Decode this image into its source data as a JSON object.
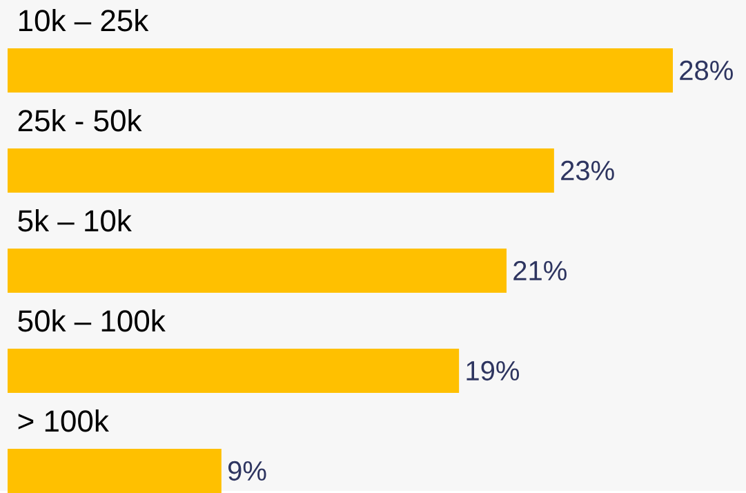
{
  "chart_data": {
    "type": "bar",
    "orientation": "horizontal",
    "categories": [
      "10k – 25k",
      "25k - 50k",
      "5k – 10k",
      "50k – 100k",
      "> 100k"
    ],
    "values": [
      28,
      23,
      21,
      19,
      9
    ],
    "value_labels": [
      "28%",
      "23%",
      "21%",
      "19%",
      "9%"
    ],
    "color": "#ffc000"
  }
}
